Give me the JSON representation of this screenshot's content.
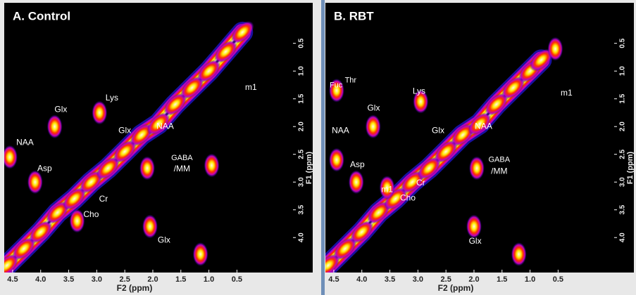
{
  "chart_data": [
    {
      "type": "contour",
      "title": "A. Control",
      "xlabel": "F2 (ppm)",
      "ylabel": "F1 (ppm)",
      "xlim": [
        4.65,
        -0.5
      ],
      "ylim": [
        -0.23,
        4.63
      ],
      "xticks": [
        4.5,
        {
          "value": 4,
          "label": "4.0"
        },
        3.5,
        {
          "value": 3,
          "label": "3.0"
        },
        2.5,
        {
          "value": 2,
          "label": "2.0"
        },
        1.5,
        {
          "value": 1,
          "label": "1.0"
        },
        0.5
      ],
      "yticks": [
        0.5,
        {
          "value": 1,
          "label": "1.0"
        },
        1.5,
        {
          "value": 2,
          "label": "2.0"
        },
        2.5,
        {
          "value": 3,
          "label": "3.0"
        },
        3.5,
        {
          "value": 4,
          "label": "4.0"
        }
      ],
      "diagonal": {
        "x": [
          4.6,
          4.3,
          4.0,
          3.7,
          3.4,
          3.1,
          2.8,
          2.5,
          2.2,
          1.9,
          1.6,
          1.3,
          1.0,
          0.7,
          0.4
        ],
        "y": [
          4.5,
          4.2,
          3.9,
          3.55,
          3.3,
          3.0,
          2.75,
          2.45,
          2.15,
          1.95,
          1.6,
          1.3,
          1.0,
          0.65,
          0.3
        ]
      },
      "peaks": {
        "x": [
          3.75,
          4.55,
          4.1,
          2.95,
          2.05,
          1.15,
          2.1,
          0.95,
          3.35
        ],
        "y": [
          2.0,
          2.55,
          3.0,
          1.75,
          3.8,
          4.3,
          2.75,
          2.7,
          3.7
        ]
      },
      "annotations": [
        {
          "text": "Glx",
          "x": 3.64,
          "y": 1.7
        },
        {
          "text": "Lys",
          "x": 2.73,
          "y": 1.49
        },
        {
          "text": "NAA",
          "x": 4.28,
          "y": 2.29
        },
        {
          "text": "Asp",
          "x": 3.93,
          "y": 2.76
        },
        {
          "text": "Glx",
          "x": 2.5,
          "y": 2.08
        },
        {
          "text": "NAA",
          "x": 1.78,
          "y": 2.0
        },
        {
          "text": "m1",
          "x": 0.25,
          "y": 1.3
        },
        {
          "text": "GABA",
          "x": 1.48,
          "y": 2.57
        },
        {
          "text": "/MM",
          "x": 1.48,
          "y": 2.77
        },
        {
          "text": "Cr",
          "x": 2.88,
          "y": 3.31
        },
        {
          "text": "Cho",
          "x": 3.1,
          "y": 3.59
        },
        {
          "text": "Glx",
          "x": 1.8,
          "y": 4.05
        }
      ]
    },
    {
      "type": "contour",
      "title": "B. RBT",
      "xlabel": "F2 (ppm)",
      "ylabel": "F1 (ppm)",
      "xlim": [
        4.65,
        -0.5
      ],
      "ylim": [
        -0.23,
        4.63
      ],
      "xticks": [
        4.5,
        {
          "value": 4,
          "label": "4.0"
        },
        3.5,
        {
          "value": 3,
          "label": "3.0"
        },
        2.5,
        {
          "value": 2,
          "label": "2.0"
        },
        1.5,
        {
          "value": 1,
          "label": "1.0"
        },
        0.5
      ],
      "yticks": [
        0.5,
        {
          "value": 1,
          "label": "1.0"
        },
        1.5,
        {
          "value": 2,
          "label": "2.0"
        },
        2.5,
        {
          "value": 3,
          "label": "3.0"
        },
        3.5,
        {
          "value": 4,
          "label": "4.0"
        }
      ],
      "diagonal": {
        "x": [
          4.6,
          4.3,
          4.0,
          3.7,
          3.4,
          3.1,
          2.8,
          2.5,
          2.2,
          1.9,
          1.6,
          1.3,
          1.0,
          0.8
        ],
        "y": [
          4.5,
          4.2,
          3.9,
          3.55,
          3.3,
          3.0,
          2.75,
          2.45,
          2.15,
          1.95,
          1.6,
          1.3,
          1.0,
          0.8
        ]
      },
      "peaks": {
        "x": [
          3.8,
          4.45,
          4.1,
          2.95,
          2.0,
          4.45,
          3.55,
          1.2,
          1.95,
          0.55
        ],
        "y": [
          2.0,
          2.6,
          3.0,
          1.55,
          3.8,
          1.35,
          3.1,
          4.3,
          2.75,
          0.6
        ]
      },
      "annotations": [
        {
          "text": "Fuc",
          "x": 4.46,
          "y": 1.26
        },
        {
          "text": "Thr",
          "x": 4.2,
          "y": 1.17
        },
        {
          "text": "Lys",
          "x": 2.98,
          "y": 1.37
        },
        {
          "text": "Glx",
          "x": 3.79,
          "y": 1.67
        },
        {
          "text": "NAA",
          "x": 4.38,
          "y": 2.08
        },
        {
          "text": "Asp",
          "x": 4.08,
          "y": 2.69
        },
        {
          "text": "Glx",
          "x": 2.64,
          "y": 2.08
        },
        {
          "text": "NAA",
          "x": 1.83,
          "y": 2.0
        },
        {
          "text": "m1",
          "x": 0.35,
          "y": 1.4
        },
        {
          "text": "GABA",
          "x": 1.55,
          "y": 2.6
        },
        {
          "text": "/MM",
          "x": 1.55,
          "y": 2.81
        },
        {
          "text": "m1",
          "x": 3.55,
          "y": 3.14
        },
        {
          "text": "Cr",
          "x": 2.95,
          "y": 3.02
        },
        {
          "text": "Cho",
          "x": 3.18,
          "y": 3.29
        },
        {
          "text": "Glx",
          "x": 1.98,
          "y": 4.07
        }
      ]
    }
  ]
}
